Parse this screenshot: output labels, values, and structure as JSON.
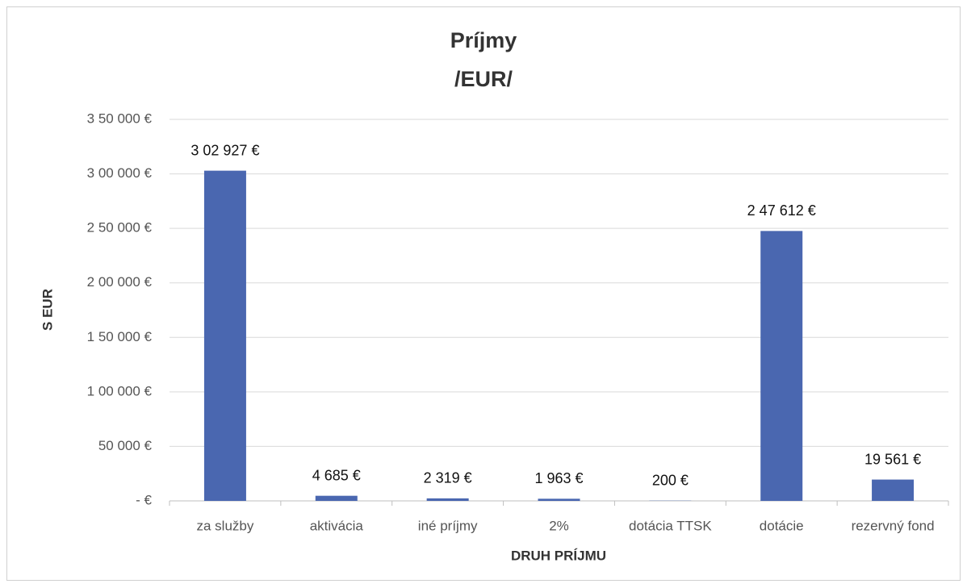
{
  "chart_data": {
    "type": "bar",
    "title": "Príjmy",
    "subtitle": "/EUR/",
    "y_label": "S EUR",
    "x_label": "DRUH PRÍJMU",
    "categories": [
      "za služby",
      "aktivácia",
      "iné príjmy",
      "2%",
      "dotácia TTSK",
      "dotácie",
      "rezervný fond"
    ],
    "values": [
      302927,
      4685,
      2319,
      1963,
      200,
      247612,
      19561
    ],
    "value_labels": [
      "3 02 927 €",
      "4 685 €",
      "2 319 €",
      "1 963 €",
      "200 €",
      "2 47 612 €",
      "19 561 €"
    ],
    "color": "#4a67b0",
    "ylim": [
      0,
      350000
    ],
    "yticks": [
      {
        "value": 0,
        "label": "-  €"
      },
      {
        "value": 50000,
        "label": "50 000 €"
      },
      {
        "value": 100000,
        "label": "1 00 000 €"
      },
      {
        "value": 150000,
        "label": "1 50 000 €"
      },
      {
        "value": 200000,
        "label": "2 00 000 €"
      },
      {
        "value": 250000,
        "label": "2 50 000 €"
      },
      {
        "value": 300000,
        "label": "3 00 000 €"
      },
      {
        "value": 350000,
        "label": "3 50 000 €"
      }
    ],
    "grid": true
  }
}
